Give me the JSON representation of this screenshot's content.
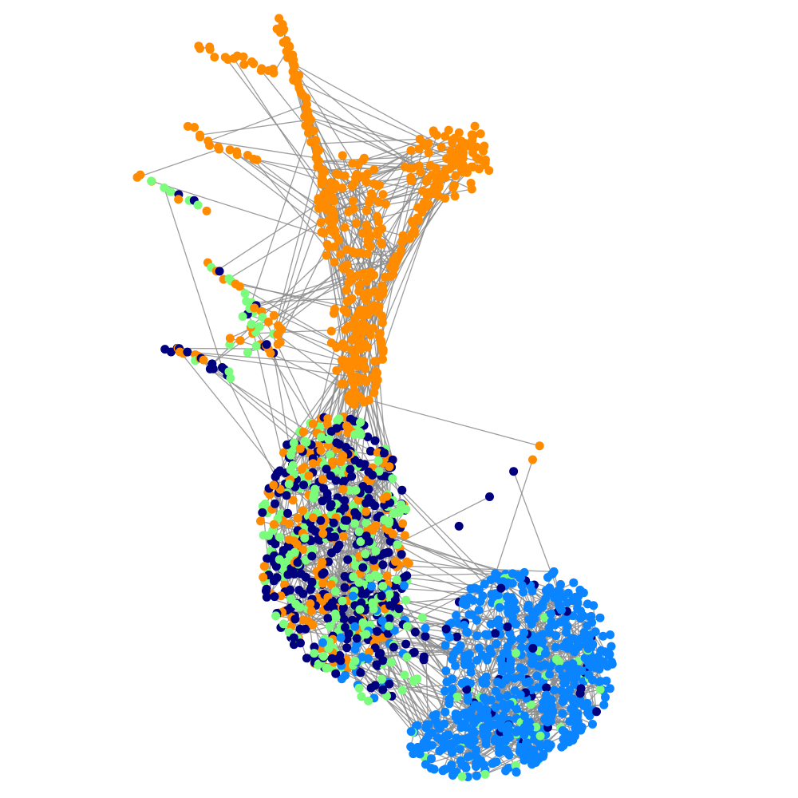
{
  "graph": {
    "type": "network",
    "node_colors": {
      "orange": "#ff8c00",
      "navy": "#00007f",
      "light_green": "#7cfc7c",
      "blue": "#0a84ff"
    },
    "edge_color": "#8c8c8c",
    "background": "#ffffff",
    "legend": false,
    "axes": false
  }
}
